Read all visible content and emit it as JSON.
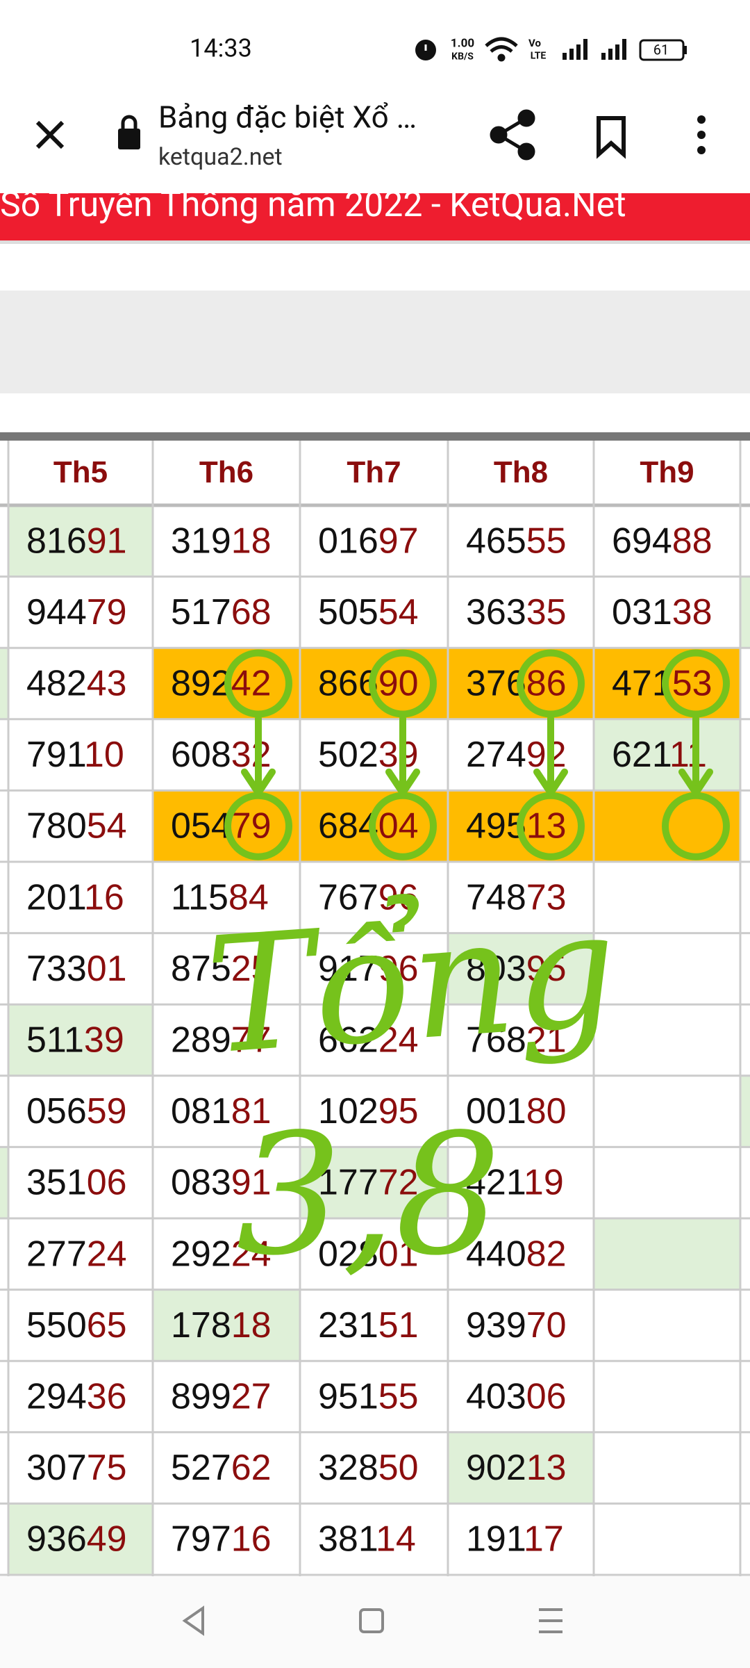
{
  "status_bar": {
    "time": "14:33",
    "net_speed_value": "1.00",
    "net_speed_unit": "KB/S",
    "volte_top": "Vo",
    "volte_bottom": "LTE",
    "battery": "61"
  },
  "browser": {
    "title": "Bảng đặc biệt Xổ …",
    "url": "ketqua2.net"
  },
  "banner": {
    "text": "Số Truyền Thống năm 2022 - KetQua.Net"
  },
  "table": {
    "headers": [
      "Th5",
      "Th6",
      "Th7",
      "Th8",
      "Th9"
    ],
    "rows": [
      [
        "81691",
        "31918",
        "01697",
        "46555",
        "69488"
      ],
      [
        "94479",
        "51768",
        "50554",
        "36335",
        "03138"
      ],
      [
        "48243",
        "89242",
        "86690",
        "37686",
        "47153"
      ],
      [
        "79110",
        "60832",
        "50239",
        "27492",
        "62111"
      ],
      [
        "78054",
        "05479",
        "68404",
        "49513",
        null
      ],
      [
        "20116",
        "11584",
        "76796",
        "74873",
        null
      ],
      [
        "73301",
        "87525",
        "91796",
        "80395",
        null
      ],
      [
        "51139",
        "28977",
        "66224",
        "76821",
        null
      ],
      [
        "05659",
        "08181",
        "10295",
        "00180",
        null
      ],
      [
        "35106",
        "08391",
        "17772",
        "42119",
        null
      ],
      [
        "27724",
        "29224",
        "02801",
        "44082",
        null
      ],
      [
        "55065",
        "17818",
        "23151",
        "93970",
        null
      ],
      [
        "29436",
        "89927",
        "95155",
        "40306",
        null
      ],
      [
        "30775",
        "52762",
        "32850",
        "90213",
        null
      ],
      [
        "93649",
        "79716",
        "38114",
        "19117",
        null
      ]
    ]
  },
  "annotation": {
    "word": "Tổng",
    "digits": "3,8"
  }
}
